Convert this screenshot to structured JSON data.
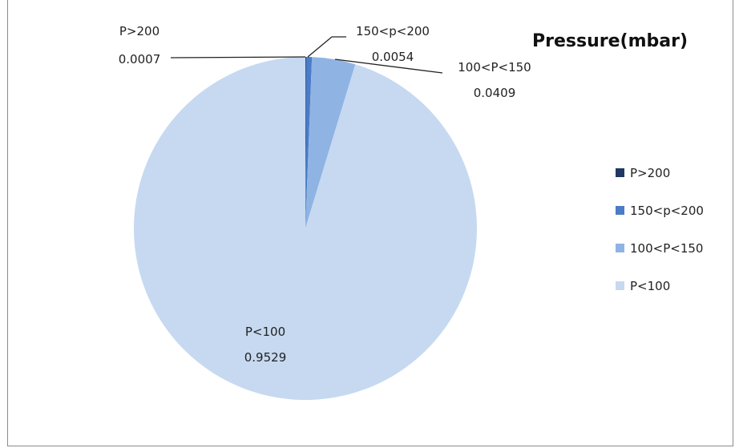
{
  "chart_data": {
    "type": "pie",
    "title": "Pressure(mbar)",
    "categories": [
      "P>200",
      "150<p<200",
      "100<P<150",
      "P<100"
    ],
    "values": [
      0.0007,
      0.0054,
      0.0409,
      0.9529
    ],
    "value_labels": [
      "0.0007",
      "0.0054",
      "0.0409",
      "0.9529"
    ],
    "colors": [
      "#1f3864",
      "#4a7cc7",
      "#8fb4e3",
      "#c6d9f1"
    ],
    "legend": {
      "placement": "right",
      "entries": [
        "P>200",
        "150<p<200",
        "100<P<150",
        "P<100"
      ]
    }
  }
}
